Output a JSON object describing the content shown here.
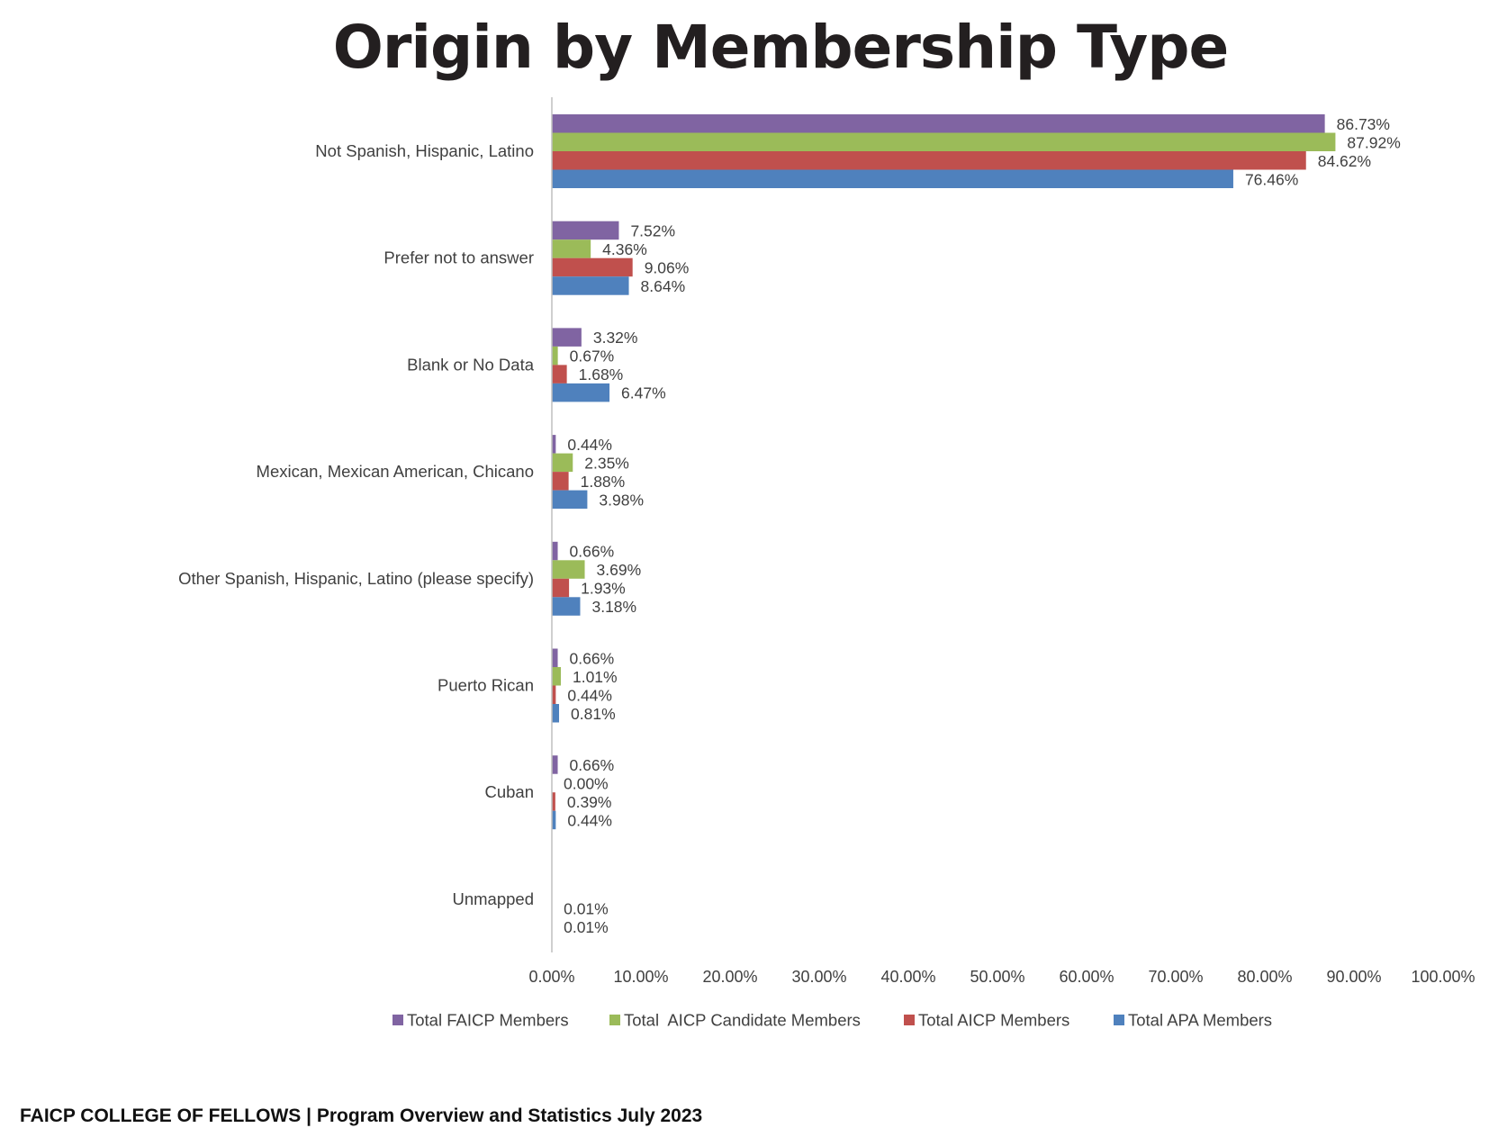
{
  "chart_data": {
    "type": "bar",
    "orientation": "horizontal",
    "title": "Origin by Membership Type",
    "categories": [
      "Not Spanish, Hispanic, Latino",
      "Prefer not to answer",
      "Blank or No Data",
      "Mexican, Mexican American, Chicano",
      "Other Spanish, Hispanic, Latino (please specify)",
      "Puerto Rican",
      "Cuban",
      "Unmapped"
    ],
    "series": [
      {
        "name": "Total FAICP Members",
        "color": "#8064a2",
        "values": [
          86.73,
          7.52,
          3.32,
          0.44,
          0.66,
          0.66,
          0.66,
          null
        ],
        "labels": [
          "86.73%",
          "7.52%",
          "3.32%",
          "0.44%",
          "0.66%",
          "0.66%",
          "0.66%",
          ""
        ]
      },
      {
        "name": "Total  AICP Candidate Members",
        "color": "#9bbb59",
        "values": [
          87.92,
          4.36,
          0.67,
          2.35,
          3.69,
          1.01,
          0.0,
          null
        ],
        "labels": [
          "87.92%",
          "4.36%",
          "0.67%",
          "2.35%",
          "3.69%",
          "1.01%",
          "0.00%",
          ""
        ]
      },
      {
        "name": "Total AICP Members",
        "color": "#c0504d",
        "values": [
          84.62,
          9.06,
          1.68,
          1.88,
          1.93,
          0.44,
          0.39,
          0.01
        ],
        "labels": [
          "84.62%",
          "9.06%",
          "1.68%",
          "1.88%",
          "1.93%",
          "0.44%",
          "0.39%",
          "0.01%"
        ]
      },
      {
        "name": "Total APA Members",
        "color": "#4f81bd",
        "values": [
          76.46,
          8.64,
          6.47,
          3.98,
          3.18,
          0.81,
          0.44,
          0.01
        ],
        "labels": [
          "76.46%",
          "8.64%",
          "6.47%",
          "3.98%",
          "3.18%",
          "0.81%",
          "0.44%",
          "0.01%"
        ]
      }
    ],
    "xlim": [
      0,
      100
    ],
    "ticks": [
      "0.00%",
      "10.00%",
      "20.00%",
      "30.00%",
      "40.00%",
      "50.00%",
      "60.00%",
      "70.00%",
      "80.00%",
      "90.00%",
      "100.00%"
    ],
    "legend_position": "bottom",
    "grid": false
  },
  "footer": {
    "text": "FAICP COLLEGE OF FELLOWS | Program Overview and Statistics July 2023"
  }
}
